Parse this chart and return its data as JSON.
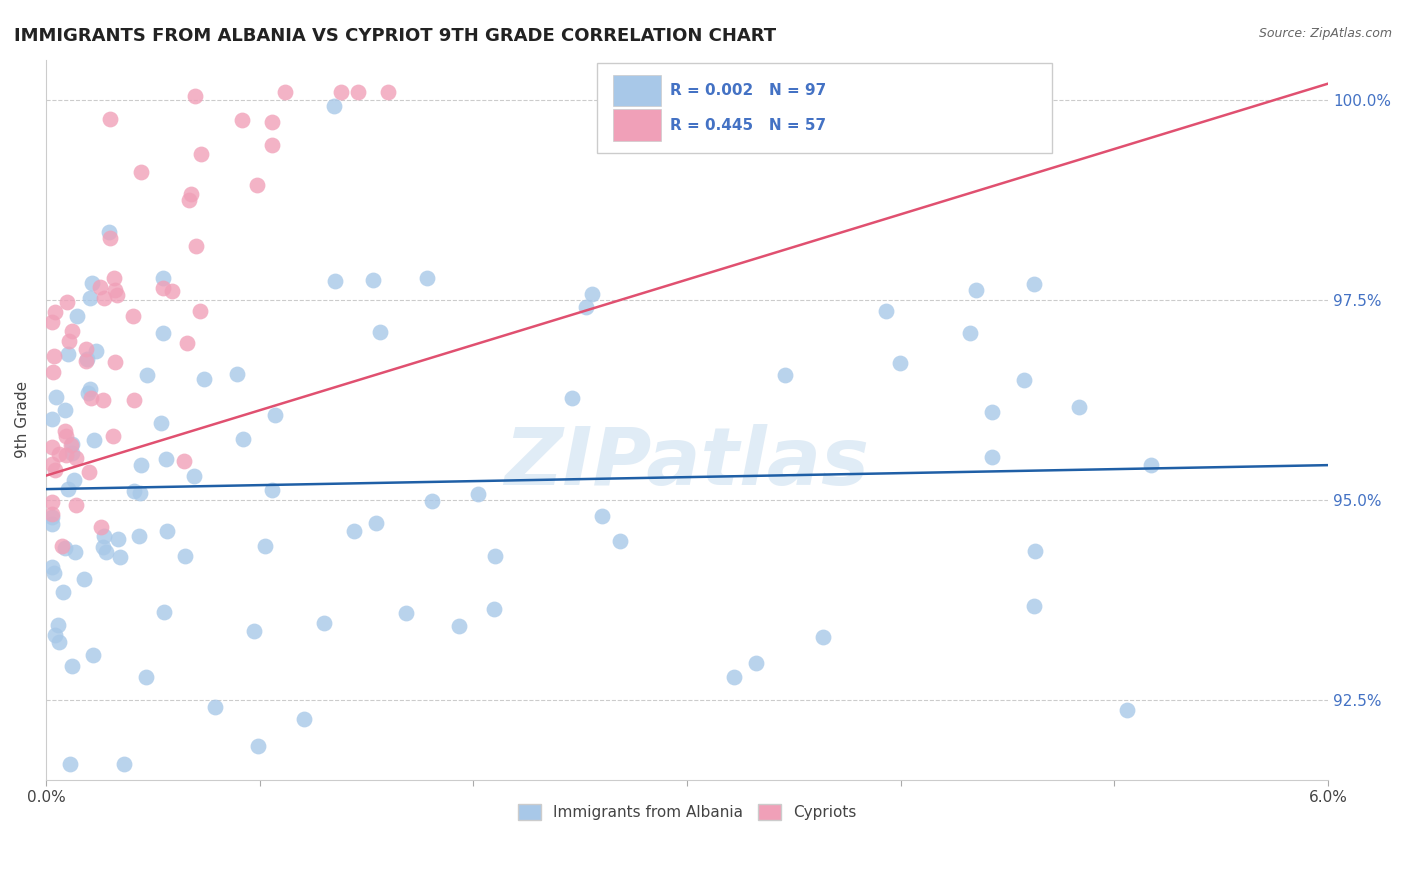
{
  "title": "IMMIGRANTS FROM ALBANIA VS CYPRIOT 9TH GRADE CORRELATION CHART",
  "source": "Source: ZipAtlas.com",
  "ylabel": "9th Grade",
  "xlim": [
    0.0,
    0.06
  ],
  "ylim": [
    0.915,
    1.005
  ],
  "yticks": [
    0.925,
    0.95,
    0.975,
    1.0
  ],
  "yticklabels": [
    "92.5%",
    "95.0%",
    "97.5%",
    "100.0%"
  ],
  "legend_labels": [
    "Immigrants from Albania",
    "Cypriots"
  ],
  "blue_color": "#A8C8E8",
  "pink_color": "#F0A0B8",
  "blue_line_color": "#1F5FA6",
  "pink_line_color": "#E05070",
  "blue_R": "0.002",
  "blue_N": "97",
  "pink_R": "0.445",
  "pink_N": "57",
  "watermark": "ZIPatlas",
  "background_color": "#FFFFFF",
  "grid_color": "#CCCCCC",
  "blue_seed": 42,
  "pink_seed": 99
}
